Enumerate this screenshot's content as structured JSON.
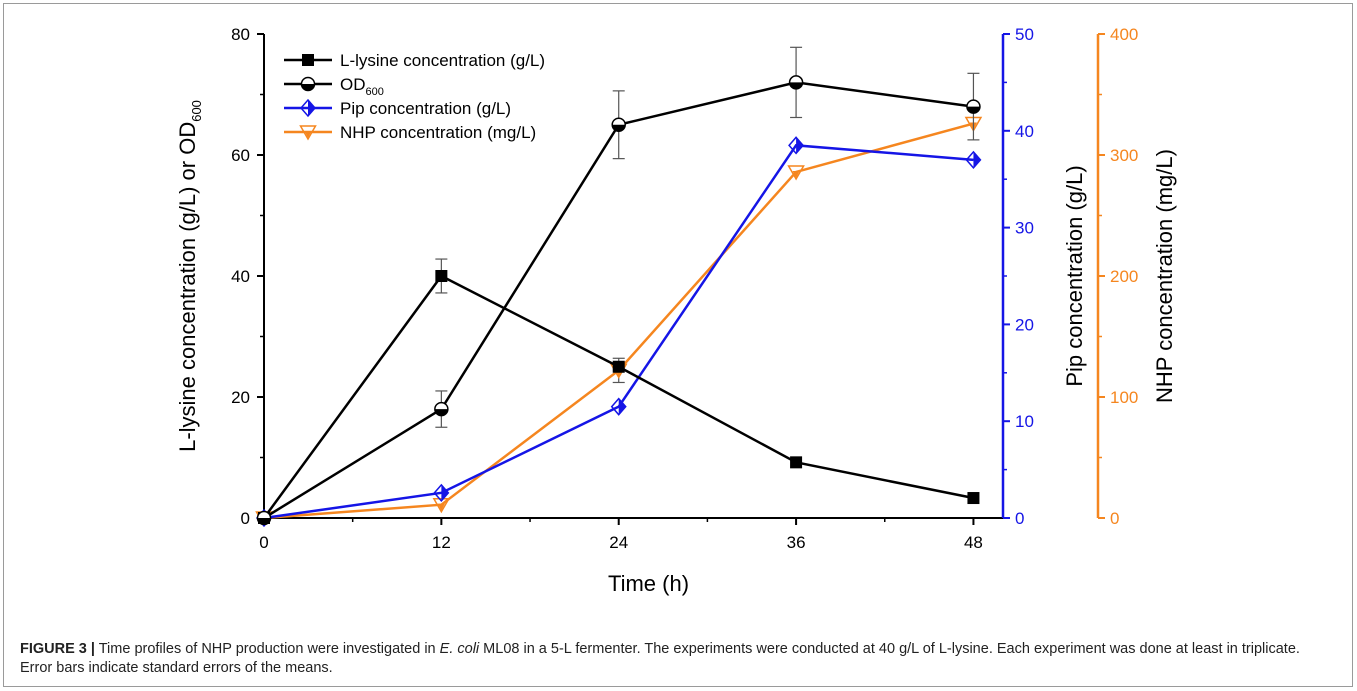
{
  "caption": {
    "label": "FIGURE 3 |",
    "text_a": " Time profiles of NHP production were investigated in ",
    "organism": "E. coli",
    "text_b": " ML08 in a 5-L fermenter. The experiments were conducted at 40 g/L of L-lysine. Each experiment was done at least in triplicate. Error bars indicate standard errors of the means."
  },
  "colors": {
    "black": "#000000",
    "blue": "#1515e6",
    "orange": "#f5861f"
  },
  "chart_data": {
    "type": "line",
    "xlabel": "Time (h)",
    "x_ticks": [
      0,
      12,
      24,
      36,
      48
    ],
    "xlim": [
      0,
      50
    ],
    "axes": {
      "left": {
        "label_main": "L-lysine concentration (g/L) or OD",
        "label_sub": "600",
        "ylim": [
          0,
          80
        ],
        "ticks": [
          0,
          20,
          40,
          60,
          80
        ],
        "color": "#000000"
      },
      "right1": {
        "label": "Pip concentration (g/L)",
        "ylim": [
          0,
          50
        ],
        "ticks": [
          0,
          10,
          20,
          30,
          40,
          50
        ],
        "color": "#1515e6"
      },
      "right2": {
        "label": "NHP concentration (mg/L)",
        "ylim": [
          0,
          400
        ],
        "ticks": [
          0,
          100,
          200,
          300,
          400
        ],
        "color": "#f5861f"
      }
    },
    "legend_position": "top-left",
    "series": [
      {
        "key": "lysine",
        "name": "L-lysine concentration (g/L)",
        "axis": "left",
        "marker": "square",
        "color": "#000000",
        "x": [
          0,
          12,
          24,
          36,
          48
        ],
        "y": [
          0,
          40,
          25,
          9.2,
          3.3
        ],
        "err": [
          0,
          2.8,
          0,
          0,
          0
        ]
      },
      {
        "key": "od",
        "name": "OD",
        "name_sub": "600",
        "axis": "left",
        "marker": "half-circle",
        "color": "#000000",
        "x": [
          0,
          12,
          24,
          36,
          48
        ],
        "y": [
          0,
          18,
          65,
          72,
          68
        ],
        "err": [
          0,
          3,
          5.6,
          5.8,
          5.5
        ]
      },
      {
        "key": "pip",
        "name": "Pip concentration (g/L)",
        "axis": "right1",
        "marker": "half-diamond",
        "color": "#1515e6",
        "x": [
          0,
          12,
          24,
          36,
          48
        ],
        "y": [
          0,
          2.6,
          11.5,
          38.5,
          37
        ],
        "err": [
          0,
          0,
          0,
          0,
          0
        ]
      },
      {
        "key": "nhp",
        "name": "NHP concentration (mg/L)",
        "axis": "right2",
        "marker": "half-triangle-down",
        "color": "#f5861f",
        "x": [
          0,
          12,
          24,
          36,
          48
        ],
        "y": [
          0,
          11,
          122,
          286,
          326
        ],
        "err": [
          0,
          0,
          10,
          0,
          0
        ]
      }
    ]
  }
}
